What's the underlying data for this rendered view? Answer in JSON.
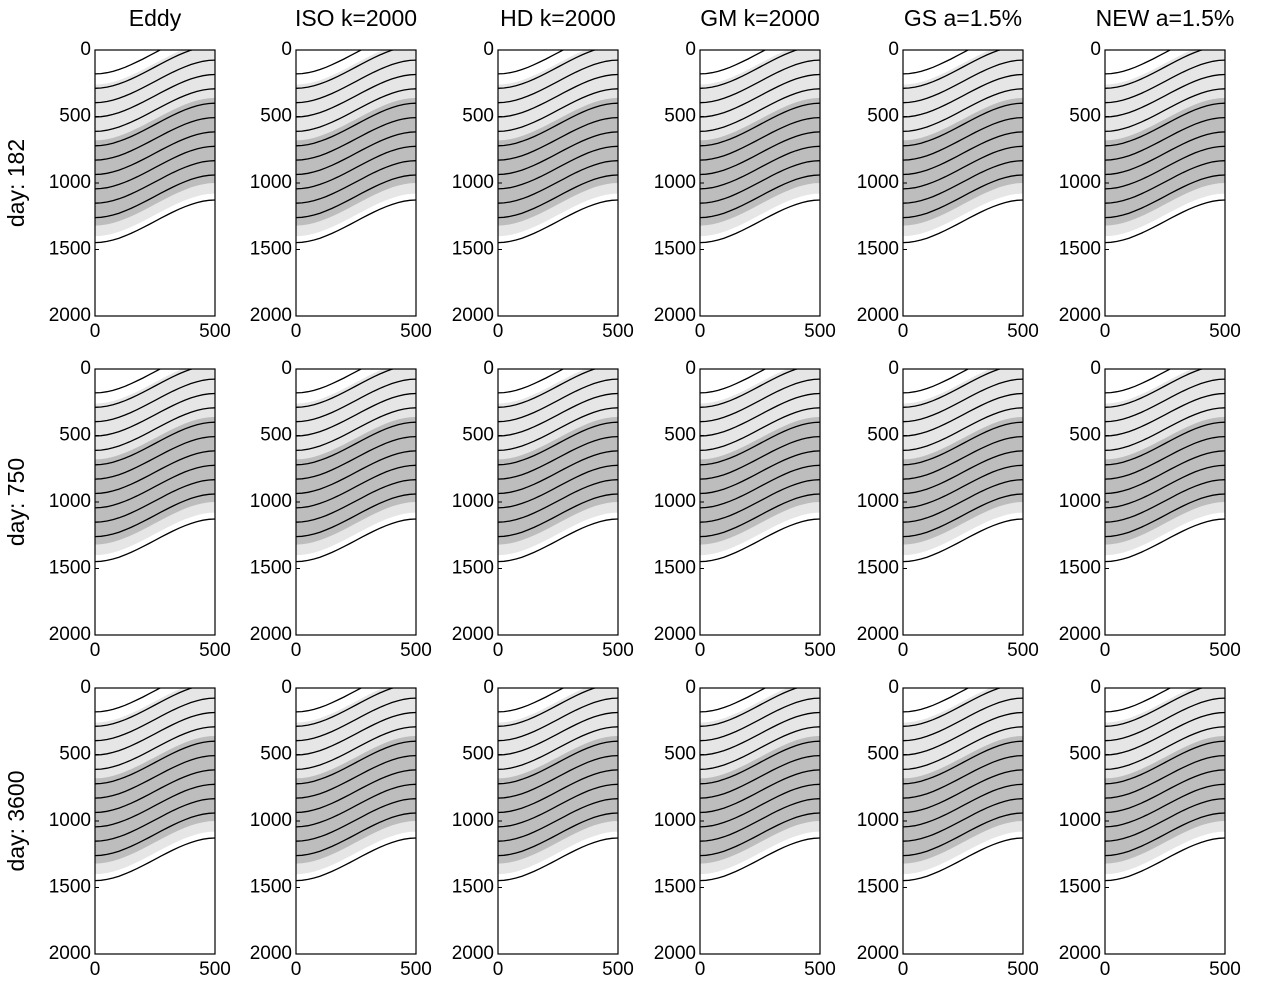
{
  "column_titles": [
    "Eddy",
    "ISO k=2000",
    "HD k=2000",
    "GM k=2000",
    "GS a=1.5%",
    "NEW a=1.5%"
  ],
  "row_labels": [
    "day: 182",
    "day: 750",
    "day: 3600"
  ],
  "chart_data": [
    {
      "type": "contour",
      "xlim": [
        0,
        500
      ],
      "ylim": [
        0,
        2000
      ],
      "y_reversed": true,
      "xticks": [
        0,
        500
      ],
      "yticks": [
        0,
        500,
        1000,
        1500,
        2000
      ]
    },
    {
      "type": "contour",
      "xlim": [
        0,
        500
      ],
      "ylim": [
        0,
        2000
      ],
      "y_reversed": true,
      "xticks": [
        0,
        500
      ],
      "yticks": [
        0,
        500,
        1000,
        1500,
        2000
      ]
    },
    {
      "type": "contour",
      "xlim": [
        0,
        500
      ],
      "ylim": [
        0,
        2000
      ],
      "y_reversed": true,
      "xticks": [
        0,
        500
      ],
      "yticks": [
        0,
        500,
        1000,
        1500,
        2000
      ]
    },
    {
      "type": "contour",
      "xlim": [
        0,
        500
      ],
      "ylim": [
        0,
        2000
      ],
      "y_reversed": true,
      "xticks": [
        0,
        500
      ],
      "yticks": [
        0,
        500,
        1000,
        1500,
        2000
      ]
    },
    {
      "type": "contour",
      "xlim": [
        0,
        500
      ],
      "ylim": [
        0,
        2000
      ],
      "y_reversed": true,
      "xticks": [
        0,
        500
      ],
      "yticks": [
        0,
        500,
        1000,
        1500,
        2000
      ]
    },
    {
      "type": "contour",
      "xlim": [
        0,
        500
      ],
      "ylim": [
        0,
        2000
      ],
      "y_reversed": true,
      "xticks": [
        0,
        500
      ],
      "yticks": [
        0,
        500,
        1000,
        1500,
        2000
      ]
    },
    {
      "type": "contour",
      "xlim": [
        0,
        500
      ],
      "ylim": [
        0,
        2000
      ],
      "y_reversed": true,
      "xticks": [
        0,
        500
      ],
      "yticks": [
        0,
        500,
        1000,
        1500,
        2000
      ]
    },
    {
      "type": "contour",
      "xlim": [
        0,
        500
      ],
      "ylim": [
        0,
        2000
      ],
      "y_reversed": true,
      "xticks": [
        0,
        500
      ],
      "yticks": [
        0,
        500,
        1000,
        1500,
        2000
      ]
    },
    {
      "type": "contour",
      "xlim": [
        0,
        500
      ],
      "ylim": [
        0,
        2000
      ],
      "y_reversed": true,
      "xticks": [
        0,
        500
      ],
      "yticks": [
        0,
        500,
        1000,
        1500,
        2000
      ]
    },
    {
      "type": "contour",
      "xlim": [
        0,
        500
      ],
      "ylim": [
        0,
        2000
      ],
      "y_reversed": true,
      "xticks": [
        0,
        500
      ],
      "yticks": [
        0,
        500,
        1000,
        1500,
        2000
      ]
    },
    {
      "type": "contour",
      "xlim": [
        0,
        500
      ],
      "ylim": [
        0,
        2000
      ],
      "y_reversed": true,
      "xticks": [
        0,
        500
      ],
      "yticks": [
        0,
        500,
        1000,
        1500,
        2000
      ]
    },
    {
      "type": "contour",
      "xlim": [
        0,
        500
      ],
      "ylim": [
        0,
        2000
      ],
      "y_reversed": true,
      "xticks": [
        0,
        500
      ],
      "yticks": [
        0,
        500,
        1000,
        1500,
        2000
      ]
    },
    {
      "type": "contour",
      "xlim": [
        0,
        500
      ],
      "ylim": [
        0,
        2000
      ],
      "y_reversed": true,
      "xticks": [
        0,
        500
      ],
      "yticks": [
        0,
        500,
        1000,
        1500,
        2000
      ]
    },
    {
      "type": "contour",
      "xlim": [
        0,
        500
      ],
      "ylim": [
        0,
        2000
      ],
      "y_reversed": true,
      "xticks": [
        0,
        500
      ],
      "yticks": [
        0,
        500,
        1000,
        1500,
        2000
      ]
    },
    {
      "type": "contour",
      "xlim": [
        0,
        500
      ],
      "ylim": [
        0,
        2000
      ],
      "y_reversed": true,
      "xticks": [
        0,
        500
      ],
      "yticks": [
        0,
        500,
        1000,
        1500,
        2000
      ]
    },
    {
      "type": "contour",
      "xlim": [
        0,
        500
      ],
      "ylim": [
        0,
        2000
      ],
      "y_reversed": true,
      "xticks": [
        0,
        500
      ],
      "yticks": [
        0,
        500,
        1000,
        1500,
        2000
      ]
    },
    {
      "type": "contour",
      "xlim": [
        0,
        500
      ],
      "ylim": [
        0,
        2000
      ],
      "y_reversed": true,
      "xticks": [
        0,
        500
      ],
      "yticks": [
        0,
        500,
        1000,
        1500,
        2000
      ]
    },
    {
      "type": "contour",
      "xlim": [
        0,
        500
      ],
      "ylim": [
        0,
        2000
      ],
      "y_reversed": true,
      "xticks": [
        0,
        500
      ],
      "yticks": [
        0,
        500,
        1000,
        1500,
        2000
      ]
    }
  ]
}
